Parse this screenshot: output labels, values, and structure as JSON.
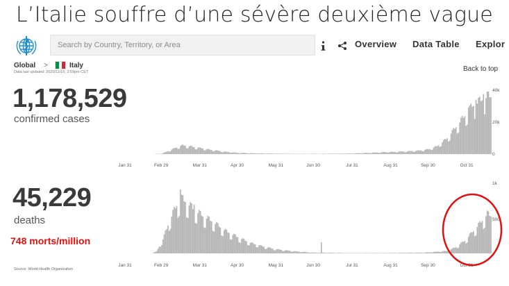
{
  "slide": {
    "title": "L’Italie souffre d’une sévère deuxième vague"
  },
  "header": {
    "search_placeholder": "Search by Country, Territory, or Area",
    "nav": [
      "Overview",
      "Data Table",
      "Explor"
    ]
  },
  "breadcrumb": {
    "root": "Global",
    "separator": ">",
    "country": "Italy"
  },
  "last_updated": "Data last updated: 2020/11/16, 2:59pm CET",
  "back_to_top": "Back to top",
  "cases": {
    "value": "1,178,529",
    "label": "confirmed cases"
  },
  "deaths": {
    "value": "45,229",
    "label": "deaths",
    "per_million": "748 morts/million"
  },
  "source": "Source: World Health Organization",
  "colors": {
    "bar": "#b4b4b4",
    "highlight": "#e01010",
    "text": "#3a3a3a",
    "flag_green": "#009246",
    "flag_red": "#ce2b37"
  },
  "icons": [
    "who-logo-icon",
    "info-icon",
    "share-icon"
  ],
  "chart_data": [
    {
      "type": "bar",
      "name": "confirmed cases",
      "x_ticks": [
        "Jan 31",
        "Feb 29",
        "Mar 31",
        "Apr 30",
        "May 31",
        "Jun 30",
        "Jul 31",
        "Aug 31",
        "Sep 30",
        "Oct 31"
      ],
      "y_ticks": [
        "0",
        "20k",
        "40k"
      ],
      "ylim": [
        0,
        40000
      ],
      "anchors": [
        [
          0,
          0
        ],
        [
          22,
          0
        ],
        [
          29,
          300
        ],
        [
          36,
          2500
        ],
        [
          42,
          4500
        ],
        [
          46,
          5500
        ],
        [
          52,
          4800
        ],
        [
          60,
          3800
        ],
        [
          70,
          2500
        ],
        [
          80,
          1500
        ],
        [
          90,
          800
        ],
        [
          100,
          600
        ],
        [
          110,
          400
        ],
        [
          120,
          300
        ],
        [
          140,
          180
        ],
        [
          160,
          220
        ],
        [
          180,
          350
        ],
        [
          195,
          800
        ],
        [
          210,
          1300
        ],
        [
          225,
          1700
        ],
        [
          235,
          2200
        ],
        [
          243,
          3000
        ],
        [
          250,
          5000
        ],
        [
          258,
          10000
        ],
        [
          265,
          17000
        ],
        [
          272,
          24000
        ],
        [
          278,
          30000
        ],
        [
          284,
          33000
        ],
        [
          290,
          36000
        ]
      ],
      "spikes": [
        [
          287,
          38000
        ],
        [
          281,
          34500
        ],
        [
          275,
          29500
        ]
      ]
    },
    {
      "type": "bar",
      "name": "deaths",
      "x_ticks": [
        "Jan 31",
        "Feb 29",
        "Mar 31",
        "Apr 30",
        "May 31",
        "Jun 30",
        "Jul 31",
        "Aug 31",
        "Sep 30",
        "Oct 31"
      ],
      "y_ticks": [
        "500",
        "1k"
      ],
      "ylim": [
        0,
        1000
      ],
      "anchors": [
        [
          0,
          0
        ],
        [
          21,
          0
        ],
        [
          25,
          30
        ],
        [
          30,
          200
        ],
        [
          35,
          450
        ],
        [
          40,
          650
        ],
        [
          44,
          780
        ],
        [
          48,
          740
        ],
        [
          55,
          620
        ],
        [
          62,
          530
        ],
        [
          70,
          450
        ],
        [
          80,
          320
        ],
        [
          90,
          230
        ],
        [
          100,
          150
        ],
        [
          110,
          100
        ],
        [
          120,
          60
        ],
        [
          135,
          30
        ],
        [
          150,
          12
        ],
        [
          180,
          5
        ],
        [
          210,
          6
        ],
        [
          240,
          12
        ],
        [
          258,
          35
        ],
        [
          265,
          90
        ],
        [
          272,
          180
        ],
        [
          278,
          300
        ],
        [
          284,
          420
        ],
        [
          290,
          560
        ],
        [
          293,
          530
        ]
      ],
      "spikes": [
        [
          44,
          919
        ],
        [
          55,
          700
        ],
        [
          157,
          160
        ]
      ]
    }
  ]
}
